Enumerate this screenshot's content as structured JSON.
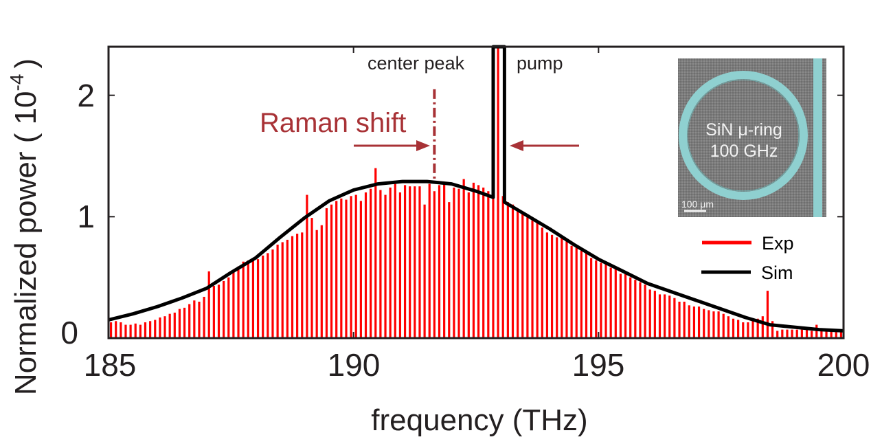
{
  "chart_data": {
    "type": "bar",
    "xlabel": "frequency (THz)",
    "ylabel": "Normalized power ( 10",
    "ylabel_exponent": "-4",
    "ylabel_close": ")",
    "xlim": [
      185,
      200
    ],
    "ylim": [
      0,
      2.4
    ],
    "xticks": [
      "185",
      "190",
      "195",
      "200"
    ],
    "xtick_values": [
      185,
      190,
      195,
      200
    ],
    "yticks": [
      "0",
      "1",
      "2"
    ],
    "ytick_values": [
      0,
      1,
      2
    ],
    "legend": {
      "position": "right",
      "entries": [
        {
          "label": "Exp",
          "color": "#ff0000"
        },
        {
          "label": "Sim",
          "color": "#000000"
        }
      ]
    },
    "exp": {
      "name": "Exp",
      "color": "#ff0000",
      "x_start": 185.05,
      "x_step": 0.1,
      "values": [
        0.13,
        0.14,
        0.13,
        0.11,
        0.11,
        0.12,
        0.11,
        0.13,
        0.14,
        0.15,
        0.17,
        0.18,
        0.2,
        0.21,
        0.24,
        0.25,
        0.28,
        0.31,
        0.3,
        0.34,
        0.55,
        0.43,
        0.44,
        0.47,
        0.5,
        0.56,
        0.59,
        0.63,
        0.64,
        0.65,
        0.65,
        0.68,
        0.7,
        0.73,
        0.77,
        0.79,
        0.81,
        0.84,
        0.86,
        0.87,
        1.18,
        0.99,
        0.89,
        0.93,
        1.07,
        1.1,
        1.13,
        1.15,
        1.14,
        1.17,
        1.18,
        1.13,
        1.2,
        1.23,
        1.4,
        1.22,
        1.18,
        1.24,
        1.27,
        1.2,
        1.26,
        1.25,
        1.25,
        1.25,
        1.1,
        1.27,
        1.21,
        1.26,
        1.28,
        1.12,
        1.24,
        1.23,
        1.31,
        1.2,
        1.28,
        1.26,
        1.24,
        1.21,
        1.18,
        2.6,
        1.17,
        1.12,
        1.1,
        1.06,
        1.04,
        1.02,
        0.97,
        0.97,
        0.91,
        0.87,
        0.85,
        0.83,
        0.83,
        0.8,
        0.76,
        0.76,
        0.72,
        0.72,
        0.66,
        0.64,
        0.62,
        0.61,
        0.58,
        0.57,
        0.53,
        0.53,
        0.5,
        0.48,
        0.46,
        0.44,
        0.4,
        0.39,
        0.36,
        0.36,
        0.35,
        0.33,
        0.3,
        0.3,
        0.27,
        0.26,
        0.26,
        0.24,
        0.23,
        0.22,
        0.22,
        0.2,
        0.18,
        0.16,
        0.15,
        0.13,
        0.13,
        0.14,
        0.16,
        0.18,
        0.39,
        0.14,
        0.06,
        0.07,
        0.07,
        0.07,
        0.07,
        0.07,
        0.07,
        0.06,
        0.11,
        0.06,
        0.06,
        0.06,
        0.05,
        0.05
      ]
    },
    "sim": {
      "name": "Sim",
      "color": "#000000",
      "x": [
        185,
        185.5,
        186,
        186.5,
        187,
        187.5,
        188,
        188.5,
        189,
        189.5,
        190,
        190.5,
        191,
        191.5,
        192,
        192.5,
        192.85,
        192.85,
        193.08,
        193.08,
        193.5,
        194,
        194.5,
        195,
        195.5,
        196,
        196.5,
        197,
        197.5,
        198,
        198.5,
        199,
        199.5,
        200
      ],
      "y": [
        0.15,
        0.2,
        0.26,
        0.33,
        0.41,
        0.54,
        0.66,
        0.83,
        0.99,
        1.13,
        1.22,
        1.27,
        1.29,
        1.29,
        1.27,
        1.21,
        1.16,
        2.4,
        2.4,
        1.12,
        1.02,
        0.9,
        0.77,
        0.65,
        0.55,
        0.45,
        0.38,
        0.31,
        0.24,
        0.17,
        0.11,
        0.09,
        0.07,
        0.06
      ]
    },
    "annotations": {
      "center_peak": {
        "label": "center peak",
        "x": 191.65,
        "y_range": [
          1.29,
          2.05
        ]
      },
      "pump": {
        "label": "pump",
        "x": 192.97
      },
      "raman_shift": {
        "label": "Raman shift",
        "color": "#a83236"
      }
    },
    "inset": {
      "title_line1": "SiN μ-ring",
      "title_line2": "100 GHz",
      "scale_bar": "100 μm",
      "ring_color": "#8fd0d0",
      "background_color": "#7a7a7a"
    }
  }
}
